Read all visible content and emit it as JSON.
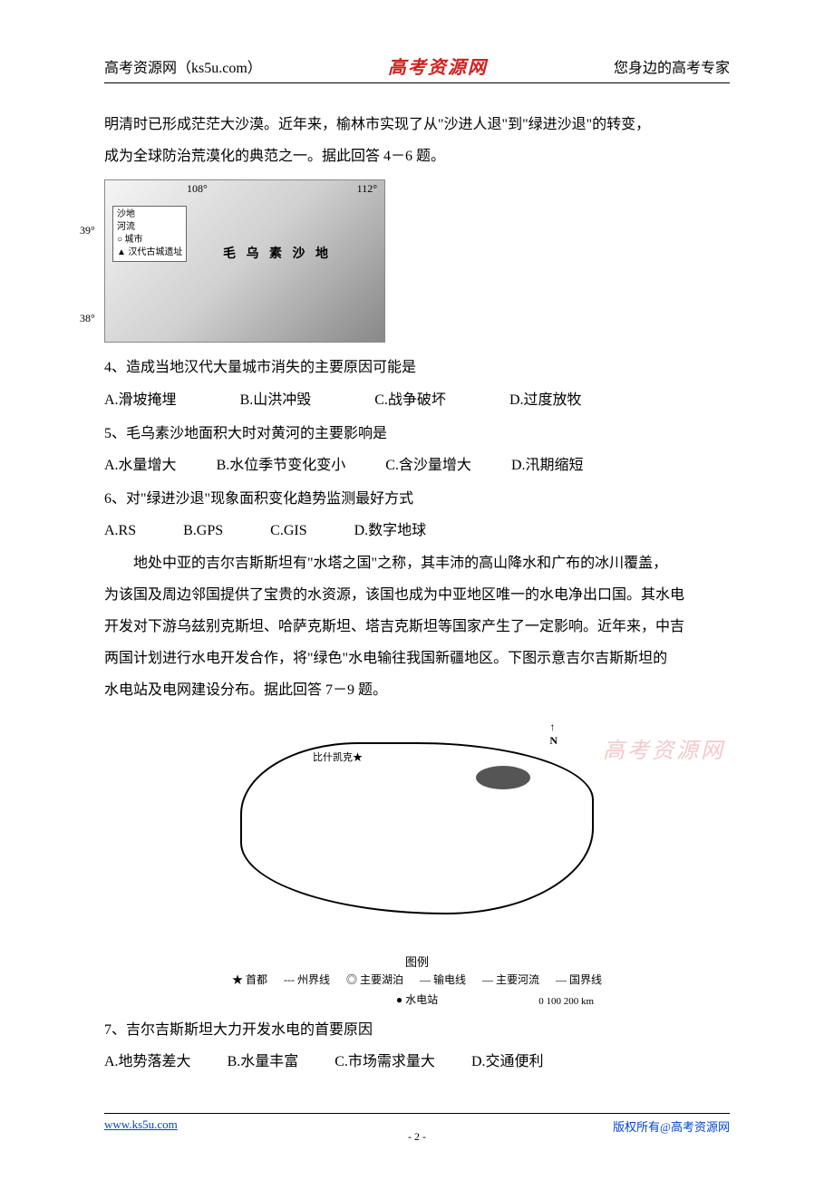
{
  "header": {
    "left": "高考资源网（ks5u.com）",
    "center": "高考资源网",
    "right": "您身边的高考专家"
  },
  "intro1_line1": "明清时已形成茫茫大沙漠。近年来，榆林市实现了从\"沙进人退\"到\"绿进沙退\"的转变，",
  "intro1_line2": "成为全球防治荒漠化的典范之一。据此回答 4－6 题。",
  "map1": {
    "lon1": "108°",
    "lon2": "112°",
    "lat1": "39°",
    "lat2": "38°",
    "legend_l1": "沙地",
    "legend_l2": "河流",
    "legend_l3": "○  城市",
    "legend_l4": "▲ 汉代古城遗址",
    "center_label": "毛 乌 素 沙 地"
  },
  "q4": {
    "stem": "4、造成当地汉代大量城市消失的主要原因可能是",
    "a": "A.滑坡掩埋",
    "b": "B.山洪冲毁",
    "c": "C.战争破坏",
    "d": "D.过度放牧"
  },
  "q5": {
    "stem": "5、毛乌素沙地面积大时对黄河的主要影响是",
    "a": "A.水量增大",
    "b": "B.水位季节变化变小",
    "c": "C.含沙量增大",
    "d": "D.汛期缩短"
  },
  "q6": {
    "stem": "6、对\"绿进沙退\"现象面积变化趋势监测最好方式",
    "a": "A.RS",
    "b": "B.GPS",
    "c": "C.GIS",
    "d": "D.数字地球"
  },
  "intro2_p1": "地处中亚的吉尔吉斯斯坦有\"水塔之国\"之称，其丰沛的高山降水和广布的冰川覆盖，",
  "intro2_p2": "为该国及周边邻国提供了宝贵的水资源，该国也成为中亚地区唯一的水电净出口国。其水电",
  "intro2_p3": "开发对下游乌兹别克斯坦、哈萨克斯坦、塔吉克斯坦等国家产生了一定影响。近年来，中吉",
  "intro2_p4": "两国计划进行水电开发合作，将\"绿色\"水电输往我国新疆地区。下图示意吉尔吉斯斯坦的",
  "intro2_p5": "水电站及电网建设分布。据此回答 7－9 题。",
  "map2": {
    "compass": "N",
    "city": "比什凯克★",
    "legend_title": "图例",
    "legend_items": {
      "l1": "★ 首都",
      "l2": "--- 州界线",
      "l3": "◎ 主要湖泊",
      "l4": "— 输电线",
      "l5": "— 主要河流",
      "l6": "— 国界线",
      "l7": "● 水电站"
    },
    "scale": "0    100    200 km"
  },
  "q7": {
    "stem": "7、吉尔吉斯斯坦大力开发水电的首要原因",
    "a": "A.地势落差大",
    "b": "B.水量丰富",
    "c": "C.市场需求量大",
    "d": "D.交通便利"
  },
  "watermark": "高考资源网",
  "footer": {
    "left": "www.ks5u.com",
    "center": "- 2 -",
    "right": "版权所有@高考资源网"
  }
}
